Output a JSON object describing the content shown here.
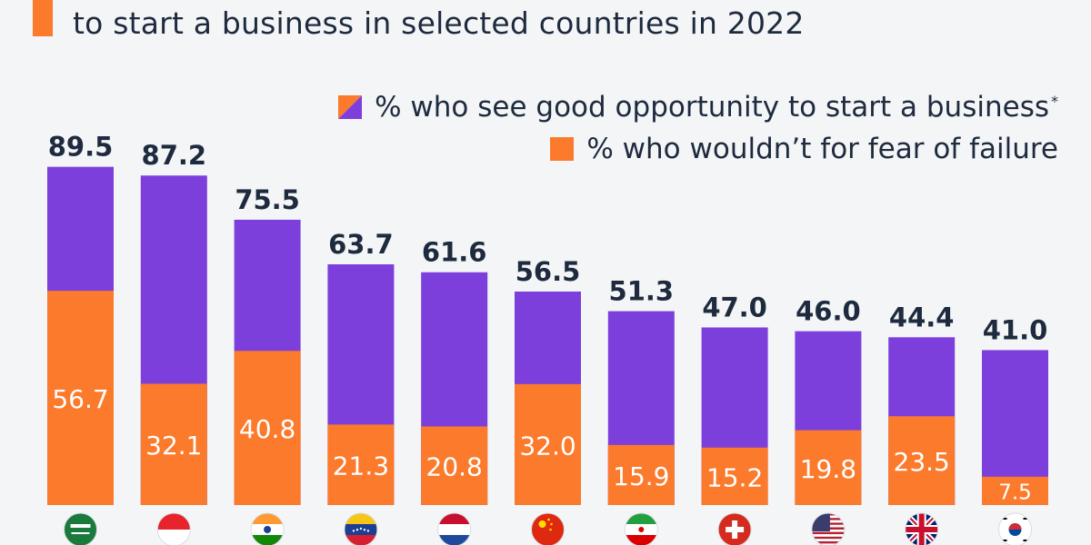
{
  "title": {
    "line2": "to start a business in selected countries in 2022"
  },
  "colors": {
    "opportunity": "#7d3fdc",
    "fear": "#fb7a2c",
    "text": "#1e2a3d",
    "white": "#ffffff"
  },
  "chart_data": {
    "type": "bar",
    "categories": [
      "Saudi Arabia",
      "Indonesia",
      "India",
      "Venezuela",
      "Netherlands",
      "China",
      "Iran",
      "Switzerland",
      "United States",
      "United Kingdom",
      "South Korea"
    ],
    "series": [
      {
        "name": "% who see good opportunity to start a business",
        "values": [
          89.5,
          87.2,
          75.5,
          63.7,
          61.6,
          56.5,
          51.3,
          47.0,
          46.0,
          44.4,
          41.0
        ],
        "labels": [
          "89.5",
          "87.2",
          "75.5",
          "63.7",
          "61.6",
          "56.5",
          "51.3",
          "47.0",
          "46.0",
          "44.4",
          "41.0"
        ]
      },
      {
        "name": "% who wouldn’t for fear of failure",
        "values": [
          56.7,
          32.1,
          40.8,
          21.3,
          20.8,
          32.0,
          15.9,
          15.2,
          19.8,
          23.5,
          7.5
        ],
        "labels": [
          "56.7",
          "32.1",
          "40.8",
          "21.3",
          "20.8",
          "32.0",
          "15.9",
          "15.2",
          "19.8",
          "23.5",
          "7.5"
        ]
      }
    ],
    "legend": {
      "opportunity_label": "% who see good opportunity to start a business",
      "opportunity_marker": "*",
      "fear_label": "% who wouldn’t for fear of failure",
      "position": "top-right"
    },
    "flags": [
      "saudi-arabia-flag",
      "indonesia-flag",
      "india-flag",
      "venezuela-flag",
      "netherlands-flag",
      "china-flag",
      "iran-flag",
      "switzerland-flag",
      "united-states-flag",
      "united-kingdom-flag",
      "south-korea-flag"
    ],
    "ylim": [
      0,
      100
    ],
    "grid": false
  }
}
